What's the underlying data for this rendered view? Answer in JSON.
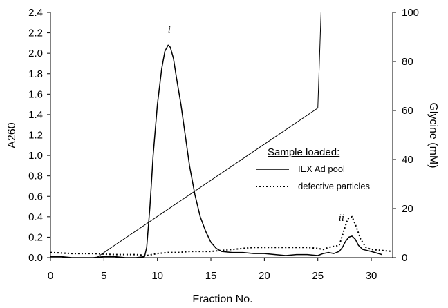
{
  "chart_data": {
    "type": "line",
    "title": "",
    "xlabel": "Fraction No.",
    "ylabel": "A260",
    "y2label": "Glycine (mM)",
    "xlim": [
      0,
      32
    ],
    "ylim": [
      0,
      2.4
    ],
    "y2lim": [
      0,
      100
    ],
    "xticks": [
      "0",
      "5",
      "10",
      "15",
      "20",
      "25",
      "30"
    ],
    "yticks": [
      "0.0",
      "0.2",
      "0.4",
      "0.6",
      "0.8",
      "1.0",
      "1.2",
      "1.4",
      "1.6",
      "1.8",
      "2.0",
      "2.2",
      "2.4"
    ],
    "y2ticks": [
      "0",
      "20",
      "40",
      "60",
      "80",
      "100"
    ],
    "grid": false,
    "legend": {
      "title": "Sample loaded:",
      "position": "center-right",
      "entries": [
        "IEX Ad pool",
        "defective particles"
      ]
    },
    "annotations": [
      {
        "text": "i",
        "x": 11.1,
        "y": 2.2
      },
      {
        "text": "ii",
        "x": 27.2,
        "y": 0.36
      }
    ],
    "series": [
      {
        "name": "IEX Ad pool",
        "axis": "left",
        "style": "solid",
        "x": [
          0,
          1,
          2,
          3,
          4,
          5,
          6,
          7,
          8,
          8.8,
          9.0,
          9.3,
          9.6,
          10.0,
          10.4,
          10.7,
          11.0,
          11.2,
          11.5,
          11.8,
          12.2,
          12.6,
          13.0,
          13.5,
          14.0,
          14.5,
          15.0,
          15.5,
          16.0,
          17.0,
          18.0,
          19.0,
          20.0,
          21.0,
          22.0,
          23.0,
          24.0,
          25.0,
          25.5,
          26.0,
          26.5,
          27.0,
          27.3,
          27.6,
          27.9,
          28.2,
          28.5,
          28.8,
          29.2,
          30.0,
          31.0
        ],
        "y": [
          0.01,
          0.01,
          0.0,
          0.0,
          0.0,
          0.01,
          0.01,
          0.0,
          0.0,
          0.01,
          0.1,
          0.5,
          1.0,
          1.5,
          1.85,
          2.02,
          2.08,
          2.06,
          1.95,
          1.75,
          1.5,
          1.2,
          0.9,
          0.62,
          0.4,
          0.26,
          0.15,
          0.09,
          0.06,
          0.05,
          0.05,
          0.04,
          0.04,
          0.03,
          0.02,
          0.03,
          0.03,
          0.02,
          0.04,
          0.05,
          0.04,
          0.06,
          0.1,
          0.16,
          0.2,
          0.21,
          0.18,
          0.12,
          0.08,
          0.06,
          0.03
        ]
      },
      {
        "name": "defective particles",
        "axis": "left",
        "style": "dotted",
        "x": [
          0,
          2,
          4,
          6,
          8,
          9,
          9.5,
          10,
          11,
          12,
          13,
          14,
          15,
          16,
          17,
          18,
          19,
          20,
          21,
          22,
          23,
          24,
          25,
          25.5,
          26,
          26.5,
          27,
          27.4,
          27.8,
          28.2,
          28.6,
          29.0,
          29.5,
          30,
          31,
          32
        ],
        "y": [
          0.05,
          0.04,
          0.04,
          0.03,
          0.03,
          0.02,
          0.03,
          0.04,
          0.05,
          0.05,
          0.06,
          0.06,
          0.06,
          0.07,
          0.08,
          0.09,
          0.1,
          0.1,
          0.1,
          0.1,
          0.1,
          0.1,
          0.09,
          0.08,
          0.1,
          0.11,
          0.12,
          0.25,
          0.38,
          0.4,
          0.3,
          0.18,
          0.1,
          0.08,
          0.07,
          0.06
        ]
      },
      {
        "name": "Glycine gradient",
        "axis": "right",
        "style": "solid-thin",
        "x": [
          0,
          4.3,
          25,
          25,
          25.3
        ],
        "y": [
          0,
          0,
          61,
          61,
          100
        ]
      }
    ]
  }
}
